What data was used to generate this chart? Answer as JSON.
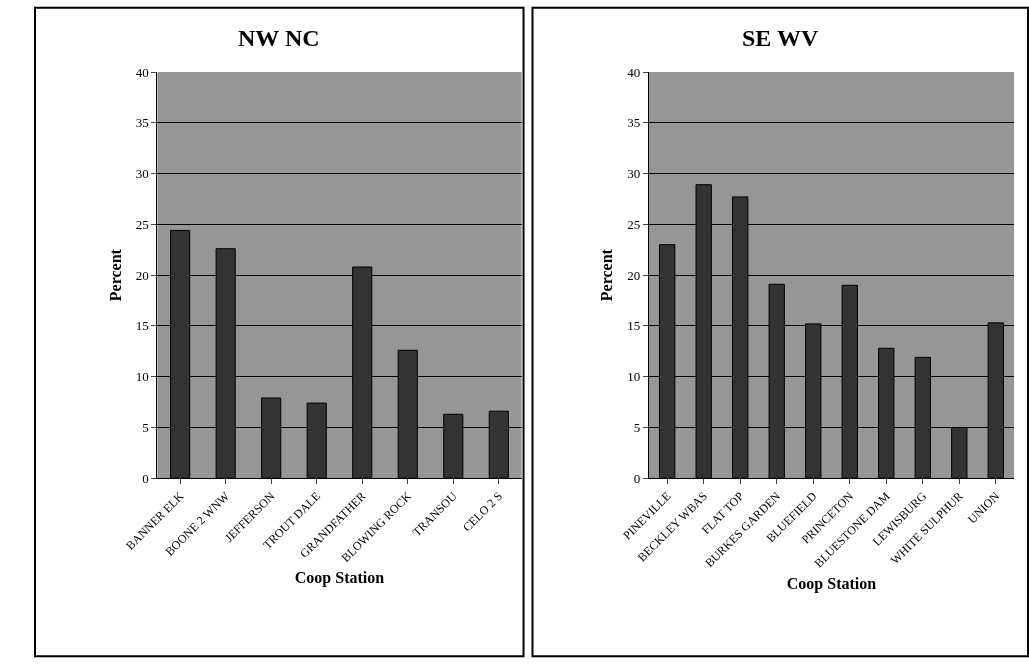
{
  "chart_data": [
    {
      "type": "bar",
      "title": "NW NC",
      "xlabel": "Coop Station",
      "ylabel": "Percent",
      "categories": [
        "BANNER ELK",
        "BOONE 2 WNW",
        "JEFFERSON",
        "TROUT DALE",
        "GRANDFATHER",
        "BLOWING ROCK",
        "TRANSOU",
        "CELO 2 S"
      ],
      "series": [
        {
          "color": "#333333",
          "values": [
            24.4,
            22.6,
            7.9,
            7.4,
            20.8,
            12.6,
            6.3,
            6.6
          ]
        }
      ],
      "ylim": [
        0,
        40
      ],
      "yticks": [
        0,
        5,
        10,
        15,
        20,
        25,
        30,
        35,
        40
      ],
      "grid": "y"
    },
    {
      "type": "bar",
      "title": "SE WV",
      "xlabel": "Coop Station",
      "ylabel": "Percent",
      "categories": [
        "PINEVILLE",
        "BECKLEY WBAS",
        "FLAT TOP",
        "BURKES GARDEN",
        "BLUEFIELD",
        "PRINCETON",
        "BLUESTONE DAM",
        "LEWISBURG",
        "WHITE SULPHUR",
        "UNION"
      ],
      "series": [
        {
          "color": "#333333",
          "values": [
            23.0,
            28.9,
            27.7,
            19.1,
            15.2,
            19.0,
            12.8,
            11.9,
            5.0,
            15.3
          ]
        }
      ],
      "ylim": [
        0,
        40
      ],
      "yticks": [
        0,
        5,
        10,
        15,
        20,
        25,
        30,
        35,
        40
      ],
      "grid": "y"
    }
  ]
}
